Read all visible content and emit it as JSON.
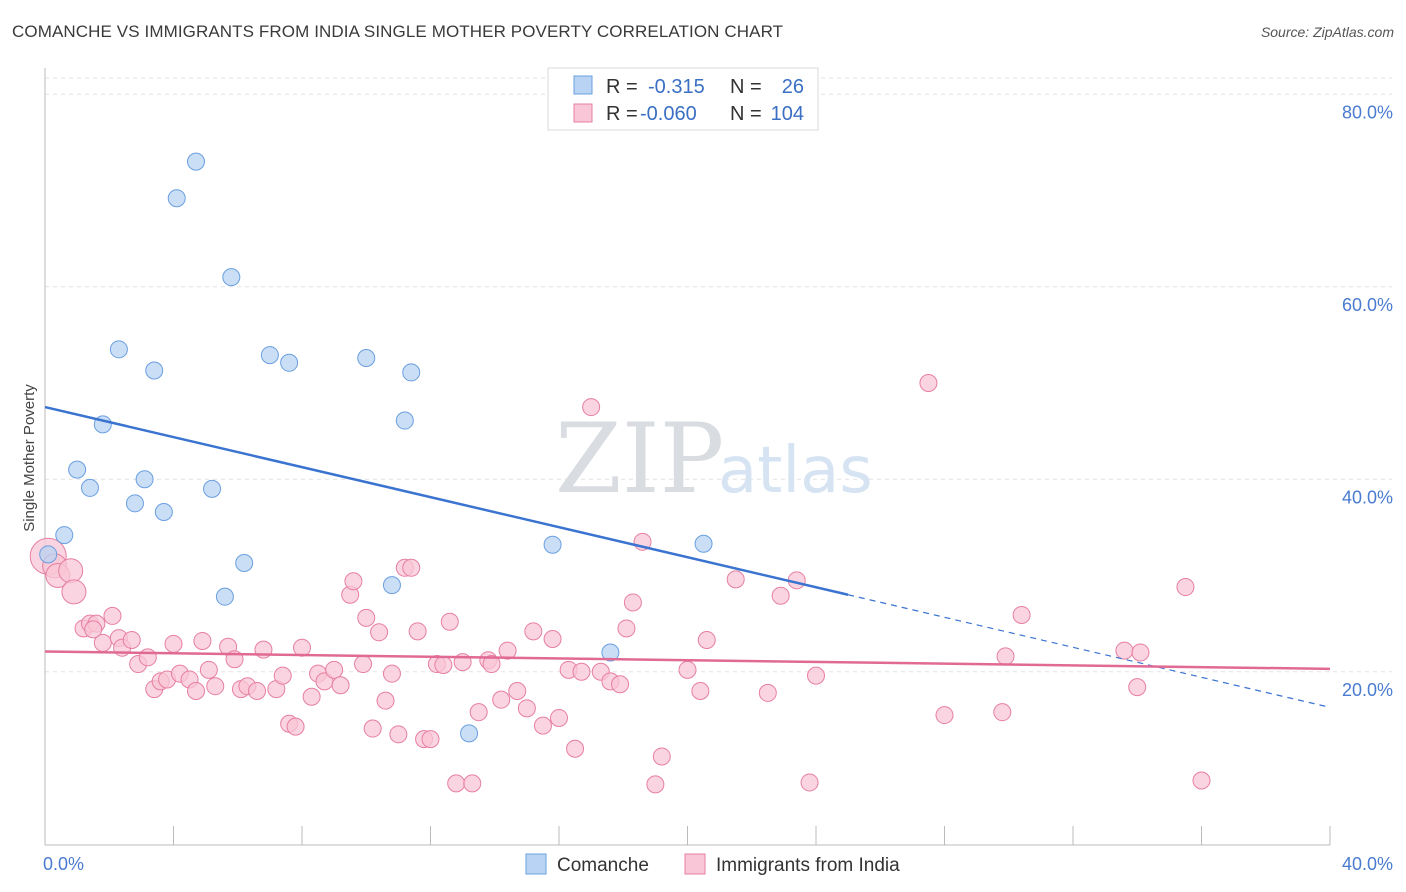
{
  "title": "COMANCHE VS IMMIGRANTS FROM INDIA SINGLE MOTHER POVERTY CORRELATION CHART",
  "source": "Source: ZipAtlas.com",
  "watermark": {
    "zip": "ZIP",
    "atlas": "atlas"
  },
  "chart_data": {
    "type": "scatter",
    "ylabel": "Single Mother Poverty",
    "xlim": [
      0,
      40
    ],
    "ylim": [
      2,
      82
    ],
    "x_ticks": [
      "0.0%",
      "40.0%"
    ],
    "y_ticks": [
      {
        "value": 20,
        "label": "20.0%"
      },
      {
        "value": 40,
        "label": "40.0%"
      },
      {
        "value": 60,
        "label": "60.0%"
      },
      {
        "value": 80,
        "label": "80.0%"
      }
    ],
    "grid": "horizontal dashed",
    "legend": {
      "placement": "top-center",
      "rows": [
        {
          "r_label": "R =",
          "r_value": "-0.315",
          "n_label": "N =",
          "n_value": "26"
        },
        {
          "r_label": "R =",
          "r_value": "-0.060",
          "n_label": "N =",
          "n_value": "104"
        }
      ]
    },
    "series": [
      {
        "name": "Comanche",
        "color": "#6a9fe0",
        "fill": "#b8d3f3",
        "trend": {
          "x0": 0,
          "y0": 47.5,
          "x1": 25,
          "y1": 28.0,
          "dash_to_x": 40,
          "dash_to_y": 16.3
        },
        "points": [
          [
            0.1,
            32.2
          ],
          [
            0.6,
            34.2
          ],
          [
            1.0,
            41.0
          ],
          [
            1.4,
            39.1
          ],
          [
            1.8,
            45.7
          ],
          [
            2.3,
            53.5
          ],
          [
            2.8,
            37.5
          ],
          [
            3.1,
            40.0
          ],
          [
            3.4,
            51.3
          ],
          [
            3.7,
            36.6
          ],
          [
            4.1,
            69.2
          ],
          [
            4.7,
            73.0
          ],
          [
            5.2,
            39.0
          ],
          [
            5.6,
            27.8
          ],
          [
            5.8,
            61.0
          ],
          [
            6.2,
            31.3
          ],
          [
            7.0,
            52.9
          ],
          [
            7.6,
            52.1
          ],
          [
            10.0,
            52.6
          ],
          [
            10.8,
            29.0
          ],
          [
            11.2,
            46.1
          ],
          [
            11.4,
            51.1
          ],
          [
            13.2,
            13.6
          ],
          [
            15.8,
            33.2
          ],
          [
            17.6,
            22.0
          ],
          [
            20.5,
            33.3
          ]
        ]
      },
      {
        "name": "Immigrants from India",
        "color": "#e77fa3",
        "fill": "#f8c6d6",
        "trend": {
          "x0": 0,
          "y0": 22.1,
          "x1": 40,
          "y1": 20.3
        },
        "points": [
          [
            0.1,
            32.0
          ],
          [
            0.3,
            31.0
          ],
          [
            0.4,
            30.0
          ],
          [
            0.8,
            30.5
          ],
          [
            0.9,
            28.3
          ],
          [
            1.2,
            24.5
          ],
          [
            1.4,
            25.0
          ],
          [
            1.6,
            25.0
          ],
          [
            1.8,
            23.0
          ],
          [
            2.1,
            25.8
          ],
          [
            2.3,
            23.5
          ],
          [
            2.4,
            22.5
          ],
          [
            2.7,
            23.3
          ],
          [
            2.9,
            20.8
          ],
          [
            3.2,
            21.5
          ],
          [
            3.4,
            18.2
          ],
          [
            3.6,
            19.0
          ],
          [
            3.8,
            19.2
          ],
          [
            4.0,
            22.9
          ],
          [
            4.2,
            19.8
          ],
          [
            4.5,
            19.2
          ],
          [
            4.7,
            18.0
          ],
          [
            4.9,
            23.2
          ],
          [
            5.1,
            20.2
          ],
          [
            5.3,
            18.5
          ],
          [
            5.7,
            22.6
          ],
          [
            5.9,
            21.3
          ],
          [
            6.1,
            18.2
          ],
          [
            6.3,
            18.5
          ],
          [
            6.6,
            18.0
          ],
          [
            6.8,
            22.3
          ],
          [
            7.2,
            18.2
          ],
          [
            7.4,
            19.6
          ],
          [
            7.6,
            14.6
          ],
          [
            7.8,
            14.3
          ],
          [
            8.0,
            22.5
          ],
          [
            8.3,
            17.4
          ],
          [
            8.5,
            19.8
          ],
          [
            8.7,
            19.0
          ],
          [
            9.0,
            20.2
          ],
          [
            9.2,
            18.6
          ],
          [
            9.5,
            28.0
          ],
          [
            9.6,
            29.4
          ],
          [
            10.0,
            25.6
          ],
          [
            10.2,
            14.1
          ],
          [
            10.4,
            24.1
          ],
          [
            10.6,
            17.0
          ],
          [
            10.8,
            19.8
          ],
          [
            11.0,
            13.5
          ],
          [
            11.2,
            30.8
          ],
          [
            11.4,
            30.8
          ],
          [
            11.6,
            24.2
          ],
          [
            11.8,
            13.0
          ],
          [
            12.0,
            13.0
          ],
          [
            12.2,
            20.8
          ],
          [
            12.4,
            20.7
          ],
          [
            12.6,
            25.2
          ],
          [
            12.8,
            8.4
          ],
          [
            13.0,
            21.0
          ],
          [
            13.3,
            8.4
          ],
          [
            13.5,
            15.8
          ],
          [
            13.8,
            21.2
          ],
          [
            13.9,
            20.8
          ],
          [
            14.2,
            17.1
          ],
          [
            14.4,
            22.2
          ],
          [
            14.7,
            18.0
          ],
          [
            15.0,
            16.2
          ],
          [
            15.2,
            24.2
          ],
          [
            15.5,
            14.4
          ],
          [
            15.8,
            23.4
          ],
          [
            16.0,
            15.2
          ],
          [
            16.3,
            20.2
          ],
          [
            16.5,
            12.0
          ],
          [
            16.7,
            20.0
          ],
          [
            17.0,
            47.5
          ],
          [
            17.3,
            20.0
          ],
          [
            17.6,
            19.0
          ],
          [
            17.9,
            18.7
          ],
          [
            18.1,
            24.5
          ],
          [
            18.3,
            27.2
          ],
          [
            18.6,
            33.5
          ],
          [
            19.0,
            8.3
          ],
          [
            19.2,
            11.2
          ],
          [
            20.0,
            20.2
          ],
          [
            20.4,
            18.0
          ],
          [
            20.6,
            23.3
          ],
          [
            21.5,
            29.6
          ],
          [
            22.5,
            17.8
          ],
          [
            22.9,
            27.9
          ],
          [
            23.4,
            29.5
          ],
          [
            23.8,
            8.5
          ],
          [
            24.0,
            19.6
          ],
          [
            27.5,
            50.0
          ],
          [
            28.0,
            15.5
          ],
          [
            29.8,
            15.8
          ],
          [
            29.9,
            21.6
          ],
          [
            30.4,
            25.9
          ],
          [
            33.6,
            22.2
          ],
          [
            34.0,
            18.4
          ],
          [
            34.1,
            22.0
          ],
          [
            35.5,
            28.8
          ],
          [
            36.0,
            8.7
          ],
          [
            1.5,
            24.4
          ],
          [
            9.9,
            20.8
          ]
        ]
      }
    ]
  }
}
